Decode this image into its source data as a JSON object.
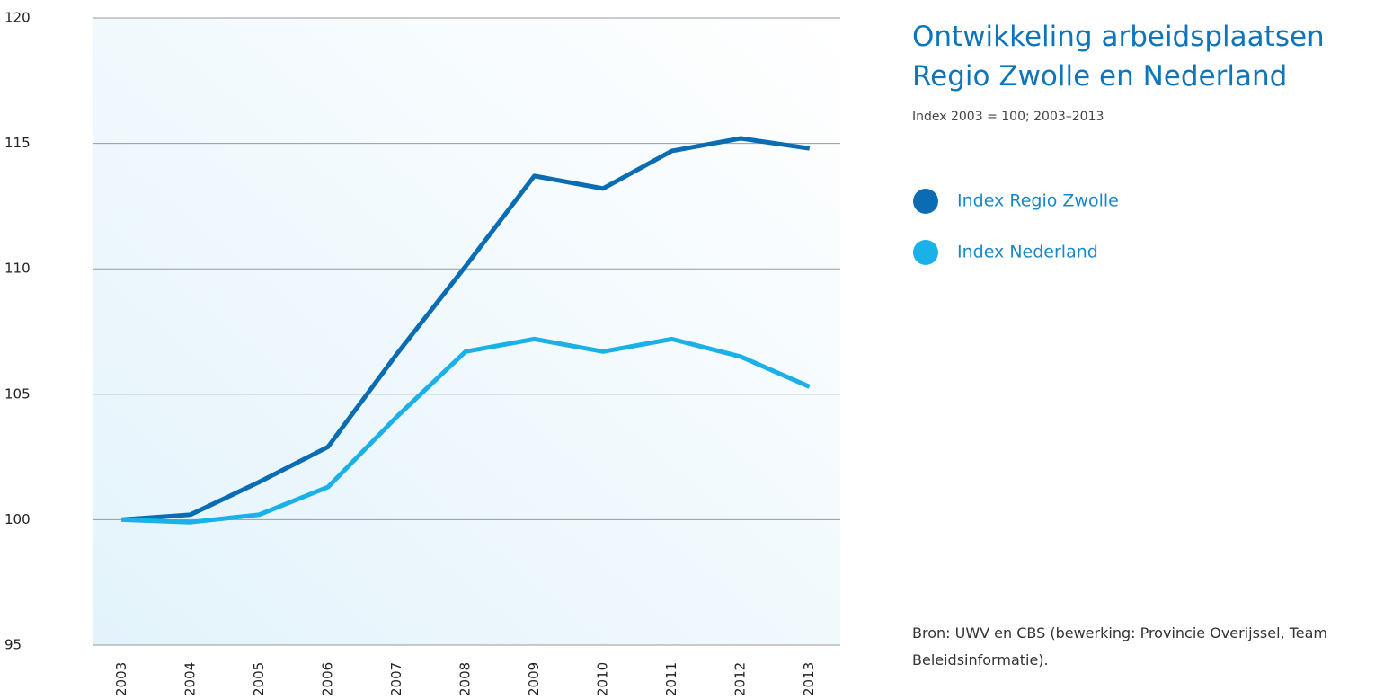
{
  "chart_data": {
    "type": "line",
    "title": "Ontwikkeling arbeidsplaatsen Regio Zwolle en Nederland",
    "subtitle": "Index 2003 = 100; 2003–2013",
    "source": "Bron: UWV en CBS (bewerking: Provincie Overijssel, Team Beleidsinformatie).",
    "categories": [
      "2003",
      "2004",
      "2005",
      "2006",
      "2007",
      "2008",
      "2009",
      "2010",
      "2011",
      "2012",
      "2013"
    ],
    "series": [
      {
        "name": "Index Regio Zwolle",
        "color": "#0a6db3",
        "values": [
          100,
          100.2,
          101.5,
          102.9,
          106.6,
          110.1,
          113.7,
          113.2,
          114.7,
          115.2,
          114.8
        ]
      },
      {
        "name": "Index Nederland",
        "color": "#1ab0e8",
        "values": [
          100,
          99.9,
          100.2,
          101.3,
          104.1,
          106.7,
          107.2,
          106.7,
          107.2,
          106.5,
          105.3
        ]
      }
    ],
    "ylim": [
      95,
      120
    ],
    "yticks": [
      95,
      100,
      105,
      110,
      115,
      120
    ],
    "grid": true
  }
}
